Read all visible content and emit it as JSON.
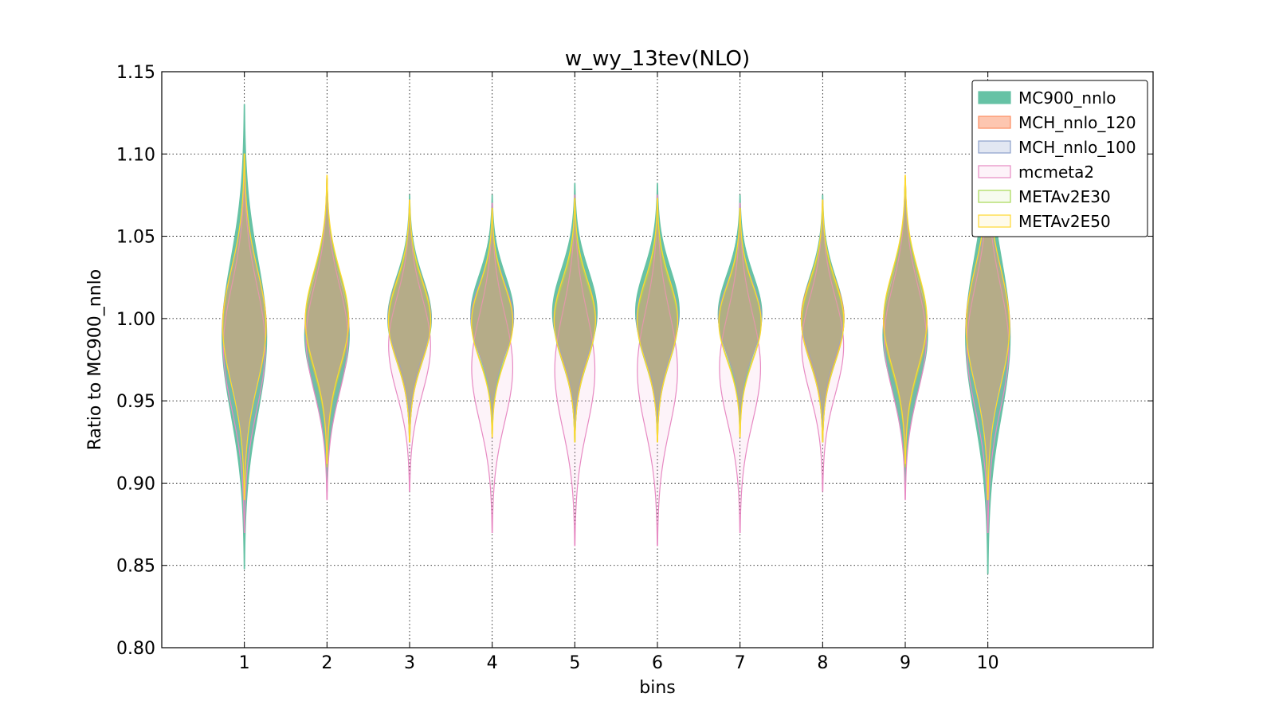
{
  "chart_data": {
    "type": "violin",
    "title": "w_wy_13tev(NLO)",
    "xlabel": "bins",
    "ylabel": "Ratio to MC900_nnlo",
    "categories": [
      "1",
      "2",
      "3",
      "4",
      "5",
      "6",
      "7",
      "8",
      "9",
      "10"
    ],
    "x": [
      1,
      2,
      3,
      4,
      5,
      6,
      7,
      8,
      9,
      10
    ],
    "xlim": [
      0,
      12
    ],
    "ylim": [
      0.8,
      1.15
    ],
    "yticks": [
      "0.80",
      "0.85",
      "0.90",
      "0.95",
      "1.00",
      "1.05",
      "1.10",
      "1.15"
    ],
    "grid": true,
    "legend_position": "top-right",
    "series": [
      {
        "name": "MC900_nnlo",
        "color": "#66c2a5",
        "fill_alpha": 1.0,
        "ranges": [
          [
            0.848,
            1.13
          ],
          [
            0.895,
            1.085
          ],
          [
            0.925,
            1.075
          ],
          [
            0.93,
            1.075
          ],
          [
            0.925,
            1.082
          ],
          [
            0.926,
            1.082
          ],
          [
            0.93,
            1.075
          ],
          [
            0.925,
            1.075
          ],
          [
            0.895,
            1.085
          ],
          [
            0.845,
            1.133
          ]
        ],
        "widths": [
          1.0,
          1.0,
          0.98,
          0.96,
          1.0,
          0.98,
          0.98,
          0.96,
          1.0,
          1.0
        ]
      },
      {
        "name": "MCH_nnlo_120",
        "color": "#fc8d62",
        "fill_alpha": 0.5,
        "ranges": [
          [
            0.89,
            1.1
          ],
          [
            0.91,
            1.085
          ],
          [
            0.93,
            1.07
          ],
          [
            0.935,
            1.065
          ],
          [
            0.93,
            1.07
          ],
          [
            0.93,
            1.07
          ],
          [
            0.935,
            1.065
          ],
          [
            0.93,
            1.07
          ],
          [
            0.91,
            1.085
          ],
          [
            0.89,
            1.1
          ]
        ],
        "widths": [
          0.98,
          0.98,
          0.96,
          0.94,
          0.94,
          0.92,
          0.96,
          0.96,
          0.98,
          0.98
        ]
      },
      {
        "name": "MCH_nnlo_100",
        "color": "#8da0cb",
        "fill_alpha": 0.25,
        "ranges": [
          [
            0.895,
            1.095
          ],
          [
            0.912,
            1.083
          ],
          [
            0.932,
            1.068
          ],
          [
            0.935,
            1.065
          ],
          [
            0.932,
            1.068
          ],
          [
            0.932,
            1.068
          ],
          [
            0.935,
            1.065
          ],
          [
            0.932,
            1.068
          ],
          [
            0.912,
            1.083
          ],
          [
            0.895,
            1.095
          ]
        ],
        "widths": [
          0.96,
          0.96,
          0.96,
          0.96,
          0.94,
          0.94,
          0.96,
          0.94,
          0.96,
          0.96
        ]
      },
      {
        "name": "mcmeta2",
        "color": "#e78ac3",
        "fill_alpha": 0.1,
        "ranges": [
          [
            0.87,
            1.095
          ],
          [
            0.89,
            1.085
          ],
          [
            0.895,
            1.072
          ],
          [
            0.87,
            1.07
          ],
          [
            0.862,
            1.075
          ],
          [
            0.862,
            1.075
          ],
          [
            0.87,
            1.07
          ],
          [
            0.895,
            1.072
          ],
          [
            0.89,
            1.085
          ],
          [
            0.87,
            1.095
          ]
        ],
        "widths": [
          0.94,
          0.94,
          0.94,
          0.92,
          0.9,
          0.9,
          0.92,
          0.94,
          0.94,
          0.94
        ]
      },
      {
        "name": "METAv2E30",
        "color": "#a6d854",
        "fill_alpha": 0.1,
        "ranges": [
          [
            0.89,
            1.1
          ],
          [
            0.91,
            1.085
          ],
          [
            0.925,
            1.07
          ],
          [
            0.93,
            1.065
          ],
          [
            0.925,
            1.07
          ],
          [
            0.925,
            1.07
          ],
          [
            0.93,
            1.065
          ],
          [
            0.925,
            1.07
          ],
          [
            0.91,
            1.085
          ],
          [
            0.89,
            1.1
          ]
        ],
        "widths": [
          0.96,
          0.96,
          0.94,
          0.92,
          0.92,
          0.9,
          0.94,
          0.94,
          0.96,
          0.96
        ]
      },
      {
        "name": "METAv2E50",
        "color": "#ffd92f",
        "fill_alpha": 0.1,
        "ranges": [
          [
            0.89,
            1.1
          ],
          [
            0.912,
            1.087
          ],
          [
            0.925,
            1.072
          ],
          [
            0.928,
            1.067
          ],
          [
            0.925,
            1.073
          ],
          [
            0.925,
            1.073
          ],
          [
            0.928,
            1.067
          ],
          [
            0.925,
            1.072
          ],
          [
            0.912,
            1.087
          ],
          [
            0.89,
            1.1
          ]
        ],
        "widths": [
          0.97,
          0.97,
          0.95,
          0.93,
          0.93,
          0.91,
          0.95,
          0.95,
          0.97,
          0.97
        ]
      }
    ]
  }
}
